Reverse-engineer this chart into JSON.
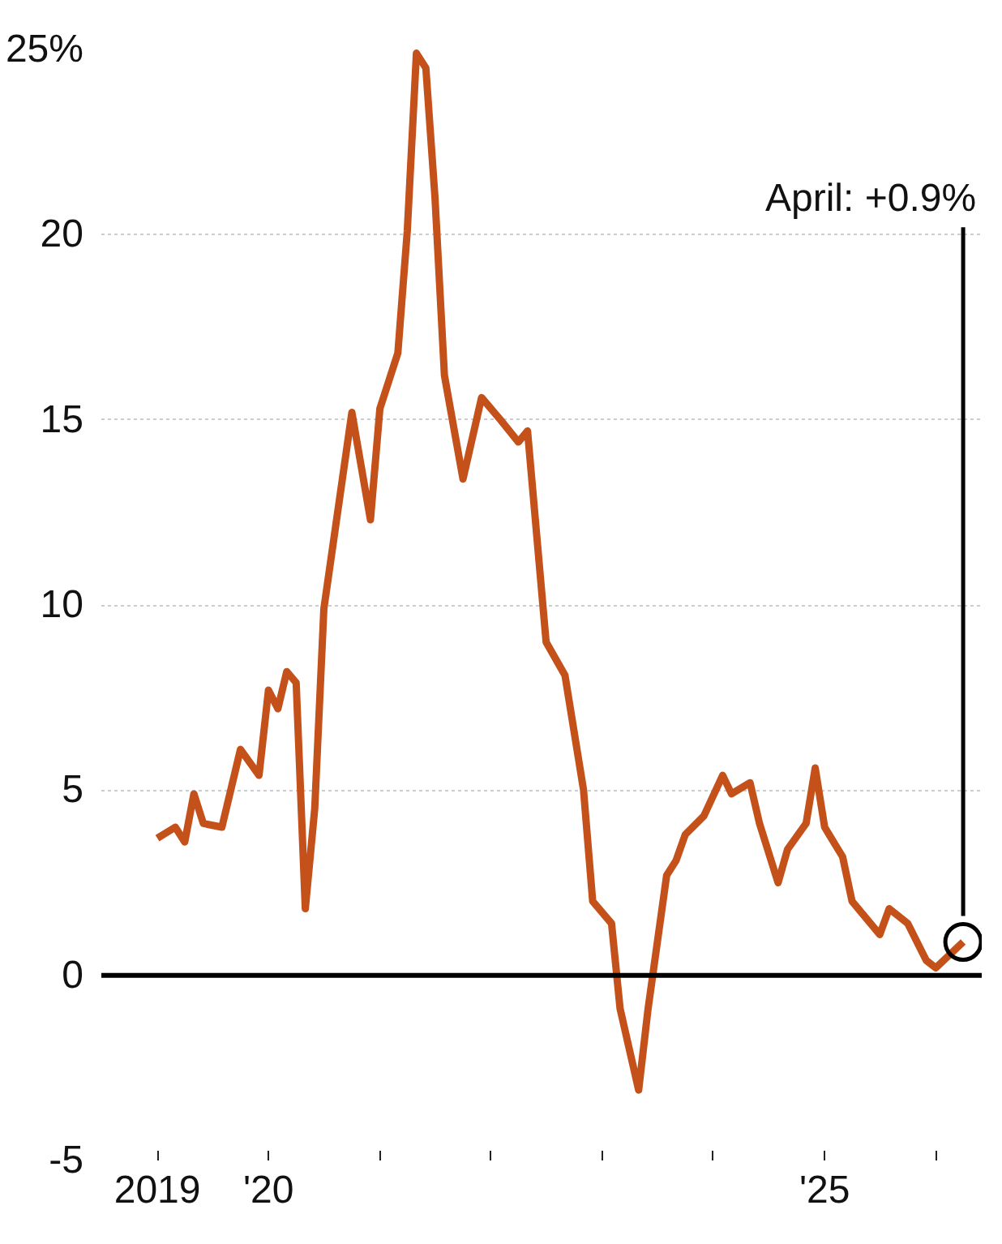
{
  "chart_data": {
    "type": "line",
    "x": [
      "2019-01",
      "2019-03",
      "2019-04",
      "2019-05",
      "2019-06",
      "2019-08",
      "2019-10",
      "2019-12",
      "2020-01",
      "2020-02",
      "2020-03",
      "2020-04",
      "2020-05",
      "2020-06",
      "2020-07",
      "2020-10",
      "2020-12",
      "2021-01",
      "2021-03",
      "2021-04",
      "2021-05",
      "2021-06",
      "2021-07",
      "2021-08",
      "2021-10",
      "2021-12",
      "2022-02",
      "2022-04",
      "2022-05",
      "2022-07",
      "2022-09",
      "2022-11",
      "2022-12",
      "2023-02",
      "2023-03",
      "2023-05",
      "2023-06",
      "2023-08",
      "2023-09",
      "2023-10",
      "2023-12",
      "2024-02",
      "2024-03",
      "2024-05",
      "2024-06",
      "2024-08",
      "2024-09",
      "2024-11",
      "2024-12",
      "2025-01",
      "2025-03",
      "2025-04",
      "2025-07",
      "2025-08",
      "2025-10",
      "2025-12",
      "2026-01",
      "2026-04"
    ],
    "series": [
      {
        "color": "#c4501a",
        "values": [
          3.7,
          4.0,
          3.6,
          4.9,
          4.1,
          4.0,
          6.1,
          5.4,
          7.7,
          7.2,
          8.2,
          7.9,
          1.8,
          4.5,
          9.9,
          15.2,
          12.3,
          15.3,
          16.8,
          20.1,
          24.9,
          24.5,
          21.0,
          16.2,
          13.4,
          15.6,
          15.0,
          14.4,
          14.7,
          9.0,
          8.1,
          5.0,
          2.0,
          1.4,
          -0.9,
          -3.1,
          -0.9,
          2.7,
          3.1,
          3.8,
          4.3,
          5.4,
          4.9,
          5.2,
          4.1,
          2.5,
          3.4,
          4.1,
          5.6,
          4.0,
          3.2,
          2.0,
          1.1,
          1.8,
          1.4,
          0.4,
          0.2,
          0.9
        ]
      }
    ],
    "xlim": [
      "2018-07",
      "2026-06"
    ],
    "xticks": [
      {
        "value": "2019",
        "label": "2019"
      },
      {
        "value": "2020",
        "label": "'20"
      },
      {
        "value": "2021",
        "label": null
      },
      {
        "value": "2022",
        "label": null
      },
      {
        "value": "2023",
        "label": null
      },
      {
        "value": "2024",
        "label": null
      },
      {
        "value": "2025",
        "label": "'25"
      },
      {
        "value": "2026",
        "label": null
      }
    ],
    "ylim": [
      -5,
      25
    ],
    "yticks": [
      {
        "value": -5,
        "label": "-5"
      },
      0,
      5,
      10,
      15,
      20,
      {
        "value": 25,
        "label": "25%"
      }
    ],
    "grid": "y",
    "marker": "none",
    "line_style": "solid",
    "ref_lines": [
      {
        "axis": "y",
        "value": 0,
        "label": null,
        "color": "#000000"
      }
    ],
    "annotations": [
      "April: +0.9%"
    ]
  }
}
